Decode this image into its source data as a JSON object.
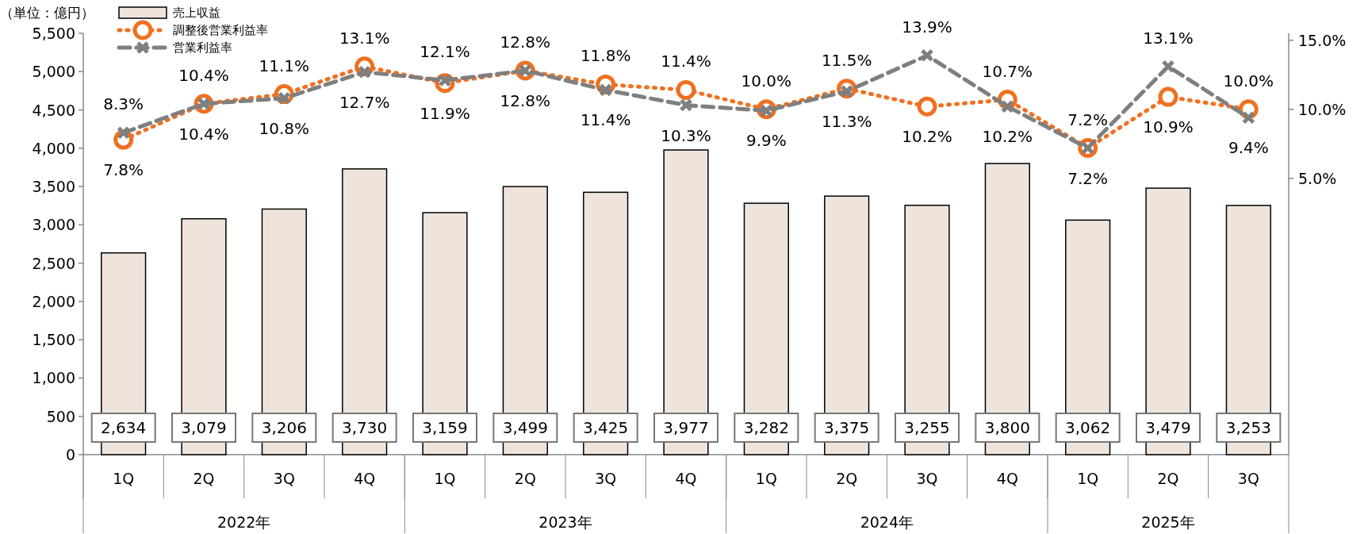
{
  "chart_data": {
    "type": "bar",
    "ylabel": "（単位：億円）",
    "categories": [
      "1Q",
      "2Q",
      "3Q",
      "4Q",
      "1Q",
      "2Q",
      "3Q",
      "4Q",
      "1Q",
      "2Q",
      "3Q",
      "4Q",
      "1Q",
      "2Q",
      "3Q"
    ],
    "annotations": [
      "2022年",
      "2023年",
      "2024年",
      "2025年"
    ],
    "ylim": [
      0,
      5500
    ],
    "yticks": [
      0,
      500,
      {
        "value": 1000,
        "label": "1,000"
      },
      {
        "value": 1500,
        "label": "1,500"
      },
      {
        "value": 2000,
        "label": "2,000"
      },
      {
        "value": 2500,
        "label": "2,500"
      },
      {
        "value": 3000,
        "label": "3,000"
      },
      {
        "value": 3500,
        "label": "3,500"
      },
      {
        "value": 4000,
        "label": "4,000"
      },
      {
        "value": 4500,
        "label": "4,500"
      },
      {
        "value": 5000,
        "label": "5,000"
      },
      {
        "value": 5500,
        "label": "5,500"
      }
    ],
    "y2lim": [
      -15,
      15.5
    ],
    "y2ticks": [
      {
        "value": 5,
        "label": "5.0%"
      },
      {
        "value": 10,
        "label": "10.0%"
      },
      {
        "value": 15,
        "label": "15.0%"
      }
    ],
    "legend": "top left",
    "series": [
      {
        "name": "売上収益",
        "color": "#eee4dc",
        "values": [
          2634,
          3079,
          3206,
          3730,
          3159,
          3499,
          3425,
          3977,
          3282,
          3375,
          3255,
          3800,
          3062,
          3479,
          3253
        ],
        "value_labels": [
          "2,634",
          "3,079",
          "3,206",
          "3,730",
          "3,159",
          "3,499",
          "3,425",
          "3,977",
          "3,282",
          "3,375",
          "3,255",
          "3,800",
          "3,062",
          "3,479",
          "3,253"
        ]
      },
      {
        "name": "調整後営業利益率",
        "type": "line",
        "axis": "y2",
        "color": "#f07020",
        "marker": "circle",
        "line_style": "dotted",
        "values": [
          7.8,
          10.4,
          11.1,
          13.1,
          11.9,
          12.8,
          11.8,
          11.4,
          10.0,
          11.5,
          10.2,
          10.7,
          7.2,
          10.9,
          10.0
        ],
        "value_labels": [
          "7.8%",
          "10.4%",
          "11.1%",
          "13.1%",
          "11.9%",
          "12.8%",
          "11.8%",
          "11.4%",
          "10.0%",
          "11.5%",
          "10.2%",
          "10.7%",
          "7.2%",
          "10.9%",
          "10.0%"
        ]
      },
      {
        "name": "営業利益率",
        "type": "line",
        "axis": "y2",
        "color": "#7f7f7f",
        "marker": "cross",
        "line_style": "dashed",
        "values": [
          8.3,
          10.4,
          10.8,
          12.7,
          12.1,
          12.8,
          11.4,
          10.3,
          9.9,
          11.3,
          13.9,
          10.2,
          7.2,
          13.1,
          9.4
        ],
        "value_labels": [
          "8.3%",
          "10.4%",
          "10.8%",
          "12.7%",
          "12.1%",
          "12.8%",
          "11.4%",
          "10.3%",
          "9.9%",
          "11.3%",
          "13.9%",
          "10.2%",
          "7.2%",
          "13.1%",
          "9.4%"
        ]
      }
    ]
  }
}
